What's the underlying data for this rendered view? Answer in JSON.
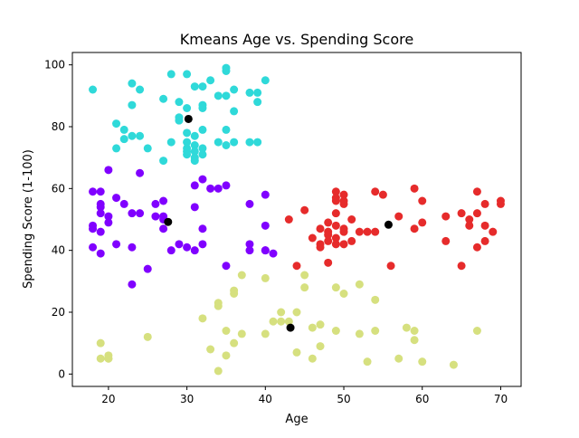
{
  "chart_data": {
    "type": "scatter",
    "title": "Kmeans Age vs. Spending Score",
    "xlabel": "Age",
    "ylabel": "Spending Score (1-100)",
    "xlim": [
      15.4,
      72.6
    ],
    "ylim": [
      -4,
      104
    ],
    "xticks": [
      20,
      30,
      40,
      50,
      60,
      70
    ],
    "yticks": [
      0,
      20,
      40,
      60,
      80,
      100
    ],
    "grid": false,
    "legend": "none",
    "series": [
      {
        "color": "#e62b2b",
        "x": [
          43,
          44,
          45,
          46,
          47,
          47,
          47,
          48,
          48,
          48,
          48,
          48,
          49,
          49,
          49,
          49,
          49,
          49,
          49,
          50,
          50,
          50,
          50,
          50,
          50,
          51,
          51,
          52,
          53,
          54,
          54,
          55,
          56,
          57,
          59,
          59,
          60,
          60,
          63,
          63,
          65,
          65,
          66,
          66,
          67,
          67,
          67,
          68,
          68,
          68,
          69,
          70,
          70
        ],
        "y": [
          50,
          35,
          53,
          44,
          42,
          47,
          41,
          43,
          49,
          46,
          45,
          36,
          59,
          57,
          56,
          48,
          44,
          42,
          52,
          58,
          56,
          55,
          47,
          46,
          42,
          50,
          43,
          46,
          46,
          59,
          46,
          58,
          35,
          51,
          60,
          47,
          56,
          49,
          51,
          43,
          52,
          35,
          50,
          48,
          59,
          52,
          41,
          55,
          48,
          43,
          46,
          56,
          55
        ]
      },
      {
        "color": "#2fd9d9",
        "x": [
          18,
          21,
          21,
          22,
          22,
          23,
          23,
          23,
          24,
          24,
          25,
          27,
          27,
          28,
          28,
          29,
          29,
          29,
          30,
          30,
          30,
          30,
          30,
          30,
          30,
          31,
          31,
          31,
          31,
          31,
          31,
          32,
          32,
          32,
          32,
          32,
          32,
          33,
          34,
          34,
          35,
          35,
          35,
          35,
          35,
          36,
          36,
          36,
          38,
          38,
          39,
          39,
          39,
          40
        ],
        "y": [
          92,
          81,
          73,
          79,
          76,
          94,
          87,
          77,
          92,
          77,
          73,
          89,
          69,
          97,
          75,
          88,
          83,
          82,
          97,
          86,
          78,
          73,
          72,
          71,
          75,
          93,
          77,
          74,
          72,
          69,
          70,
          93,
          87,
          86,
          79,
          73,
          71,
          95,
          90,
          75,
          99,
          98,
          90,
          79,
          74,
          92,
          85,
          75,
          91,
          75,
          91,
          88,
          75,
          95
        ]
      },
      {
        "color": "#8000ff",
        "x": [
          18,
          18,
          18,
          18,
          19,
          19,
          19,
          19,
          19,
          19,
          20,
          20,
          20,
          21,
          21,
          22,
          23,
          23,
          23,
          24,
          24,
          25,
          26,
          26,
          27,
          27,
          27,
          27,
          28,
          29,
          30,
          31,
          31,
          31,
          32,
          32,
          32,
          33,
          34,
          35,
          35,
          38,
          38,
          38,
          40,
          40,
          40,
          40,
          41
        ],
        "y": [
          59,
          48,
          47,
          41,
          59,
          55,
          54,
          52,
          46,
          39,
          66,
          51,
          49,
          57,
          42,
          55,
          52,
          41,
          29,
          65,
          52,
          34,
          55,
          51,
          56,
          51,
          50,
          47,
          40,
          42,
          41,
          61,
          54,
          40,
          63,
          47,
          42,
          60,
          60,
          61,
          35,
          55,
          42,
          40,
          58,
          48,
          40,
          40,
          39
        ]
      },
      {
        "color": "#d6e07f",
        "x": [
          19,
          19,
          20,
          20,
          20,
          25,
          32,
          33,
          34,
          34,
          34,
          35,
          35,
          36,
          36,
          36,
          37,
          37,
          40,
          40,
          41,
          42,
          42,
          43,
          44,
          44,
          45,
          45,
          46,
          46,
          47,
          47,
          49,
          49,
          50,
          52,
          52,
          53,
          54,
          54,
          57,
          58,
          59,
          59,
          60,
          64,
          67
        ],
        "y": [
          10,
          5,
          6,
          5,
          5,
          12,
          18,
          8,
          23,
          22,
          1,
          14,
          6,
          27,
          26,
          10,
          32,
          13,
          31,
          13,
          17,
          20,
          17,
          17,
          20,
          7,
          32,
          28,
          15,
          5,
          16,
          9,
          28,
          14,
          26,
          29,
          13,
          4,
          24,
          14,
          5,
          15,
          14,
          11,
          4,
          3,
          14
        ]
      },
      {
        "color": "#000000",
        "x": [
          30.2,
          27.6,
          55.7,
          43.2
        ],
        "y": [
          82.5,
          49.2,
          48.3,
          15.0
        ]
      }
    ]
  }
}
